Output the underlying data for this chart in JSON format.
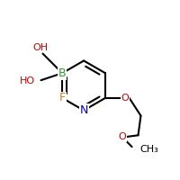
{
  "background_color": "#ffffff",
  "bond_color": "#000000",
  "bond_width": 1.5,
  "figsize": [
    2.0,
    2.0
  ],
  "dpi": 100,
  "atoms": {
    "N": {
      "color": "#0000cc",
      "fontsize": 9
    },
    "B": {
      "color": "#2ca02c",
      "fontsize": 9
    },
    "F": {
      "color": "#e07820",
      "fontsize": 9
    },
    "O": {
      "color": "#cc0000",
      "fontsize": 8
    },
    "OH": {
      "color": "#cc0000",
      "fontsize": 8
    },
    "HO": {
      "color": "#cc0000",
      "fontsize": 8
    },
    "CH3": {
      "color": "#000000",
      "fontsize": 8
    }
  }
}
